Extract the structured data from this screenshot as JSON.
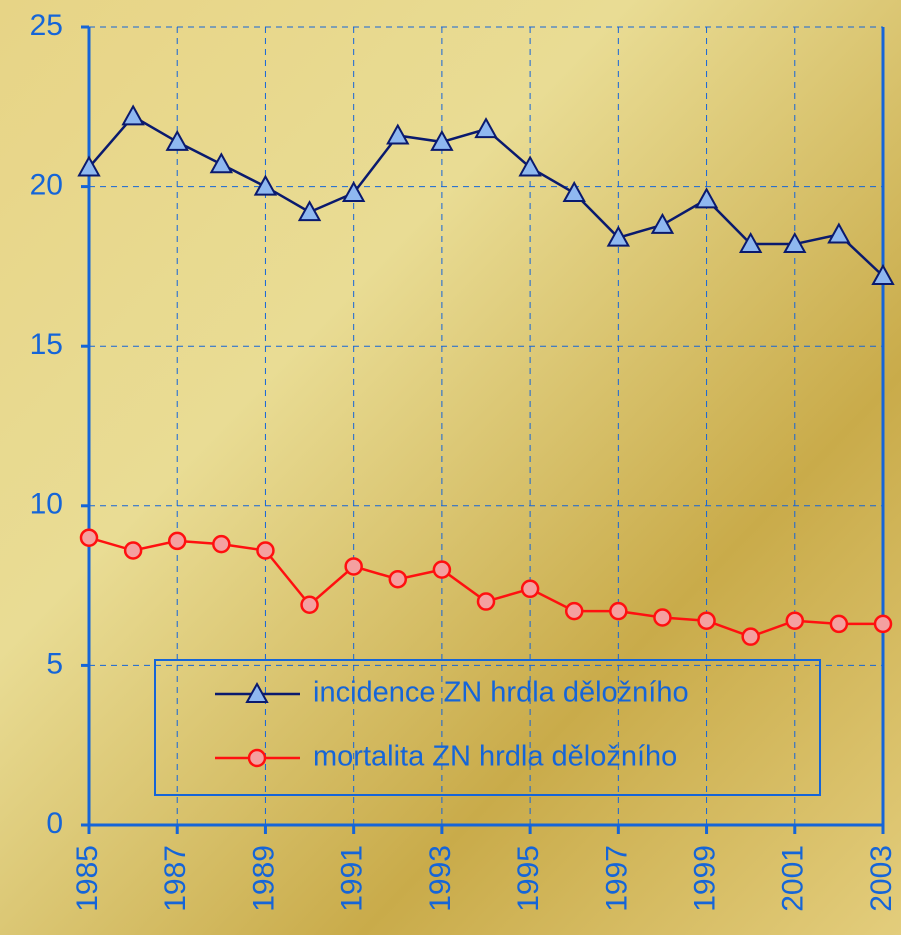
{
  "chart_data": {
    "type": "line",
    "x": [
      1985,
      1986,
      1987,
      1988,
      1989,
      1990,
      1991,
      1992,
      1993,
      1994,
      1995,
      1996,
      1997,
      1998,
      1999,
      2000,
      2001,
      2002,
      2003
    ],
    "series": [
      {
        "name": "incidence ZN hrdla děložního",
        "color": "#0a1a6e",
        "marker": "triangle",
        "marker_color": "#8fb8f0",
        "values": [
          20.6,
          22.2,
          21.4,
          20.7,
          20.0,
          19.2,
          19.8,
          21.6,
          21.4,
          21.8,
          20.6,
          19.8,
          18.4,
          18.8,
          19.6,
          18.2,
          18.2,
          18.5,
          17.2
        ]
      },
      {
        "name": "mortalita ZN hrdla děložního",
        "color": "#ff1010",
        "marker": "circle",
        "marker_color": "#f4a0a0",
        "values": [
          9.0,
          8.6,
          8.9,
          8.8,
          8.6,
          6.9,
          8.1,
          7.7,
          8.0,
          7.0,
          7.4,
          6.7,
          6.7,
          6.5,
          6.4,
          5.9,
          6.4,
          6.3,
          6.3
        ]
      }
    ],
    "xlim": [
      1985,
      2003
    ],
    "xticks": [
      1985,
      1987,
      1989,
      1991,
      1993,
      1995,
      1997,
      1999,
      2001,
      2003
    ],
    "ylim": [
      0,
      25
    ],
    "yticks": [
      0,
      5,
      10,
      15,
      20,
      25
    ],
    "grid": true,
    "legend": "lower-center"
  }
}
